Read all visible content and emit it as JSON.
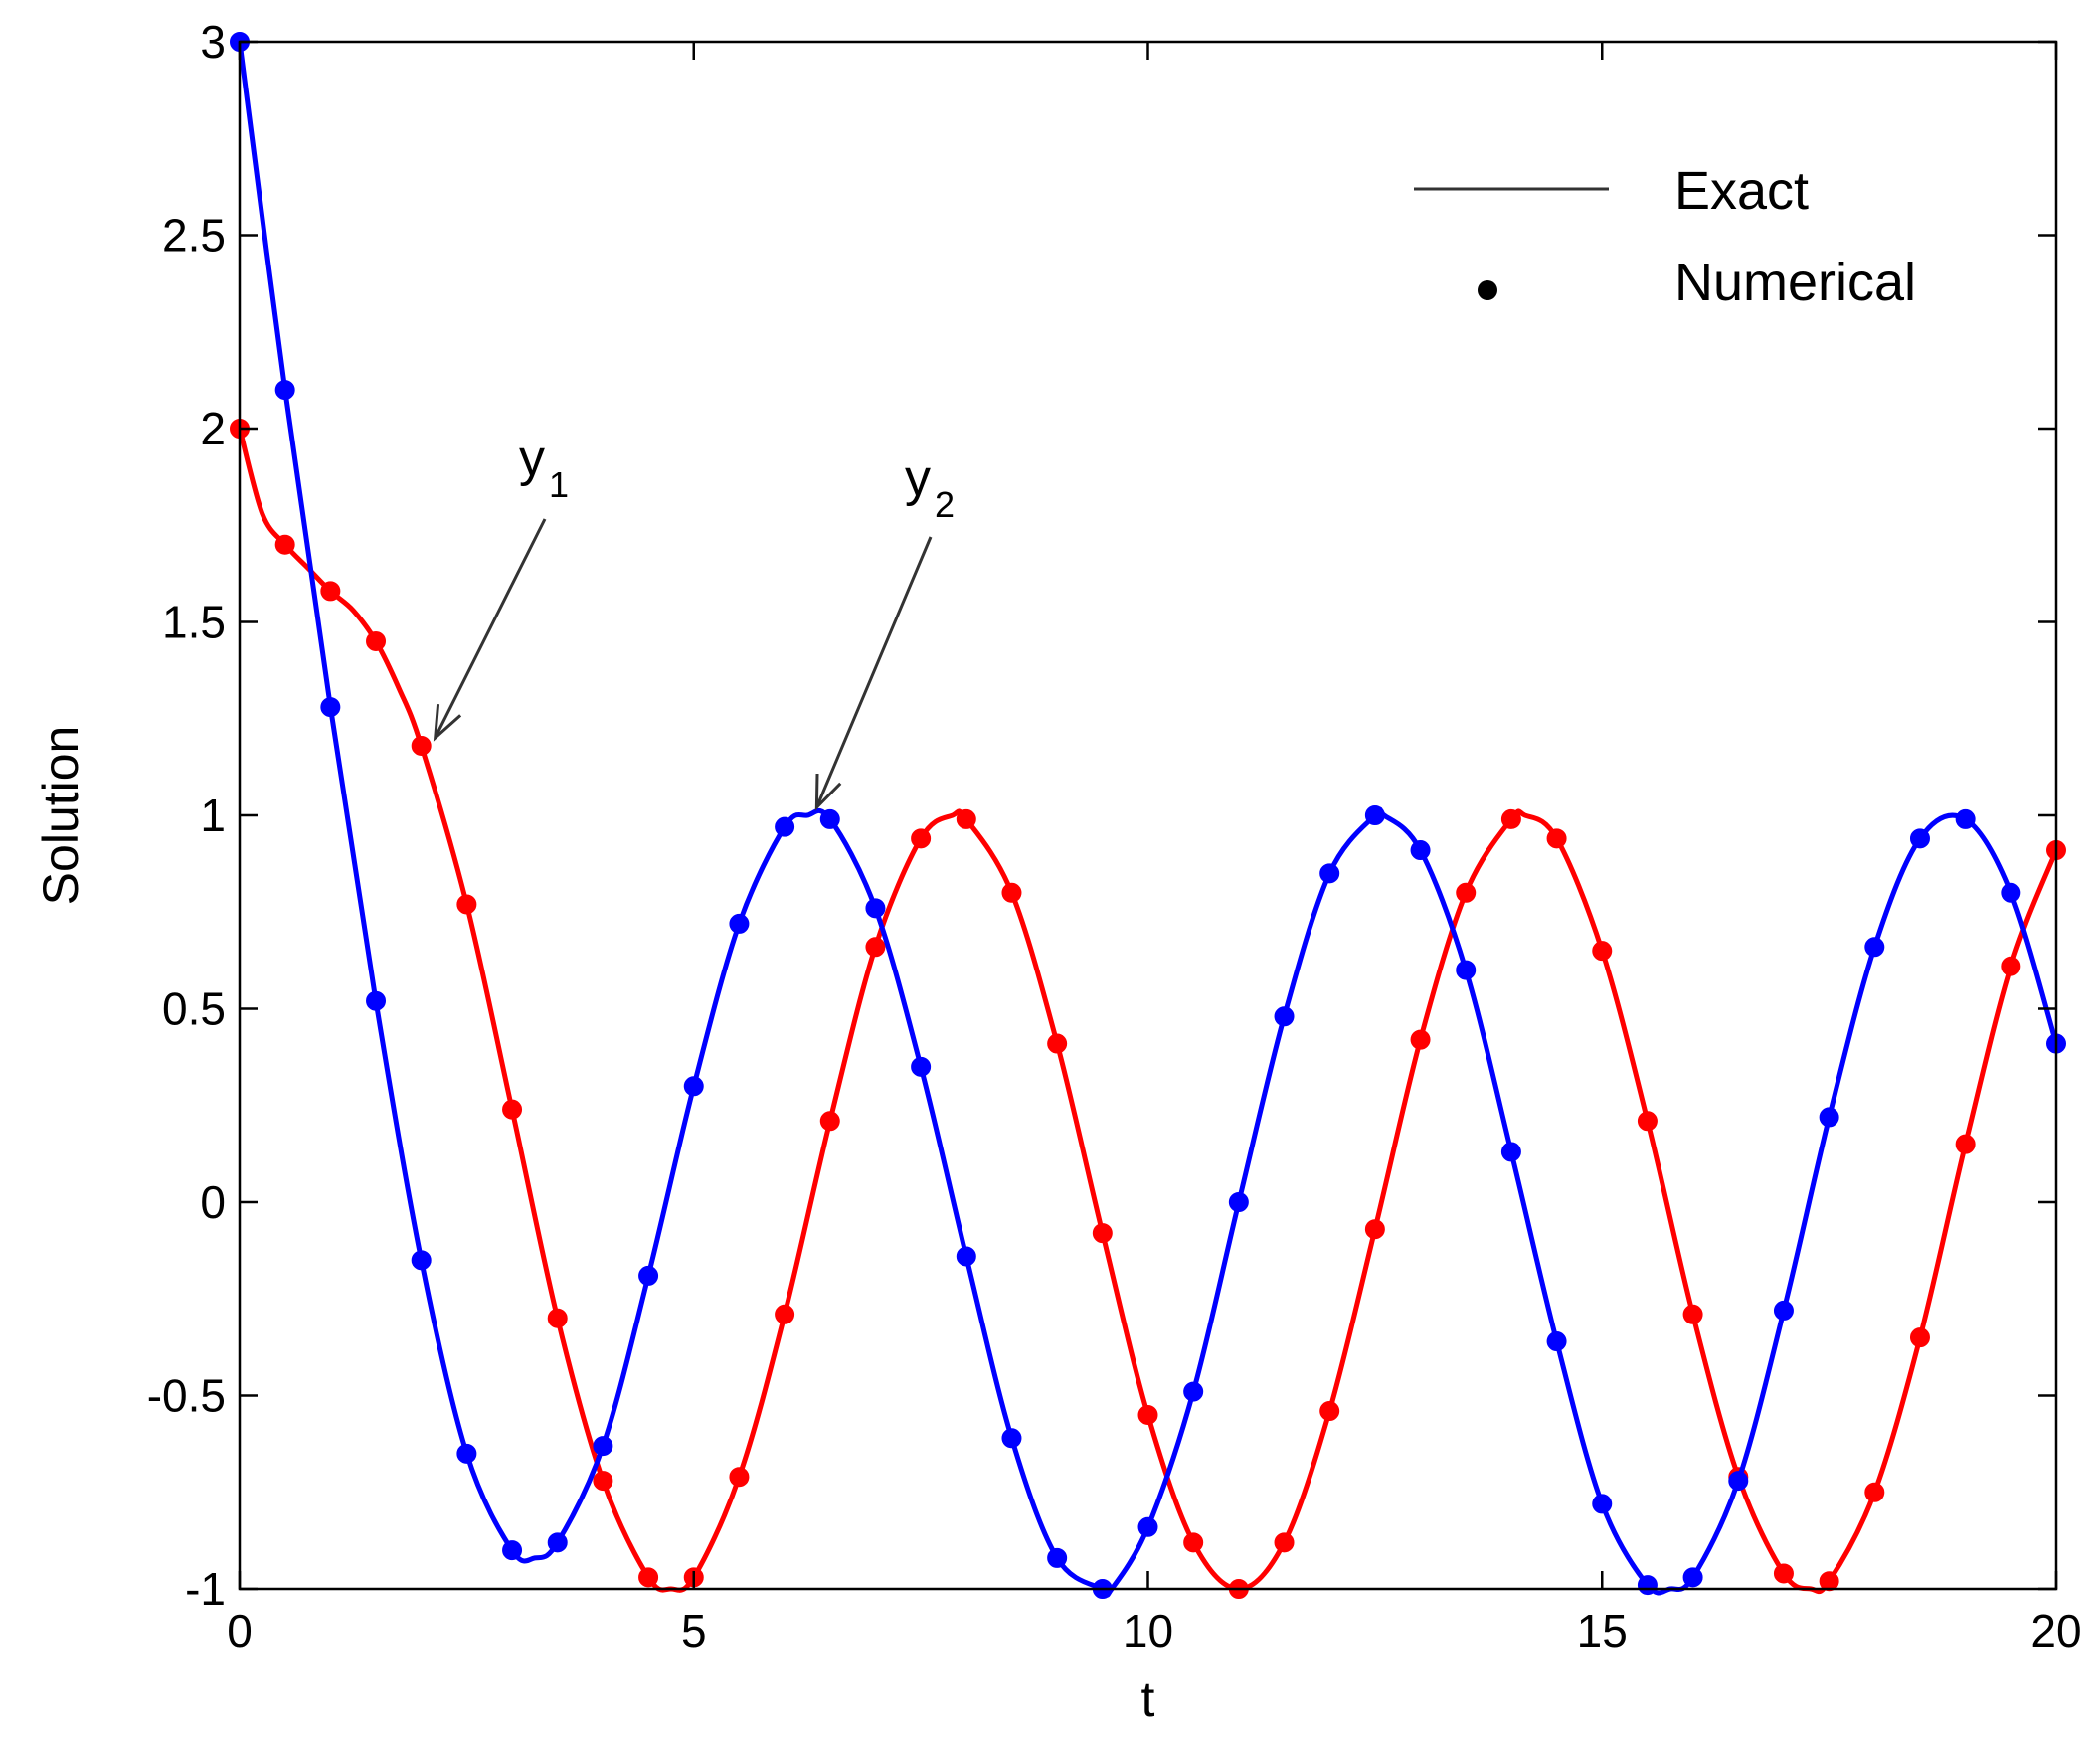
{
  "chart_data": {
    "type": "line",
    "title": "",
    "xlabel": "t",
    "ylabel": "Solution",
    "xlim": [
      0,
      20
    ],
    "ylim": [
      -1,
      3
    ],
    "xticks": [
      0,
      5,
      10,
      15,
      20
    ],
    "yticks": [
      -1,
      -0.5,
      0,
      0.5,
      1,
      1.5,
      2,
      2.5,
      3
    ],
    "xtick_labels": [
      "0",
      "5",
      "10",
      "15",
      "20"
    ],
    "ytick_labels": [
      "-1",
      "-0.5",
      "0",
      "0.5",
      "1",
      "1.5",
      "2",
      "2.5",
      "3"
    ],
    "grid": false,
    "legend": {
      "placement": "top-right",
      "entries": [
        {
          "label": "Exact",
          "marker": "line"
        },
        {
          "label": "Numerical",
          "marker": "dot"
        }
      ]
    },
    "annotations": [
      {
        "base": "y",
        "subscript": "1",
        "points_to": {
          "x": 2.0,
          "y": 1.18
        }
      },
      {
        "base": "y",
        "subscript": "2",
        "points_to": {
          "x": 6.2,
          "y": 1.0
        }
      }
    ],
    "series": [
      {
        "color": "#ff0000",
        "exact": {
          "x": [
            0,
            0.25,
            0.5,
            0.75,
            1,
            1.25,
            1.5,
            1.75,
            2,
            2.5,
            3,
            3.5,
            4,
            4.5,
            4.75,
            5,
            5.5,
            6,
            6.5,
            7,
            7.5,
            7.85,
            8,
            8.5,
            9,
            9.5,
            10,
            10.5,
            11,
            11.5,
            12,
            12.5,
            13,
            13.5,
            14,
            14.15,
            14.5,
            15,
            15.5,
            16,
            16.5,
            17,
            17.3,
            17.5,
            18,
            18.5,
            19,
            19.5,
            20
          ],
          "y": [
            2.0,
            1.78,
            1.7,
            1.64,
            1.58,
            1.53,
            1.45,
            1.33,
            1.18,
            0.77,
            0.24,
            -0.3,
            -0.72,
            -0.97,
            -1.0,
            -0.97,
            -0.71,
            -0.29,
            0.21,
            0.66,
            0.94,
            1.0,
            0.99,
            0.8,
            0.41,
            -0.08,
            -0.55,
            -0.88,
            -1.0,
            -0.88,
            -0.54,
            -0.07,
            0.42,
            0.8,
            0.99,
            1.0,
            0.94,
            0.65,
            0.21,
            -0.29,
            -0.71,
            -0.96,
            -1.0,
            -0.98,
            -0.75,
            -0.35,
            0.15,
            0.61,
            0.91
          ]
        },
        "numerical": {
          "x": [
            0,
            0.5,
            1,
            1.5,
            2,
            2.5,
            3,
            3.5,
            4,
            4.5,
            5,
            5.5,
            6,
            6.5,
            7,
            7.5,
            8,
            8.5,
            9,
            9.5,
            10,
            10.5,
            11,
            11.5,
            12,
            12.5,
            13,
            13.5,
            14,
            14.5,
            15,
            15.5,
            16,
            16.5,
            17,
            17.5,
            18,
            18.5,
            19,
            19.5,
            20
          ],
          "y": [
            2.0,
            1.7,
            1.58,
            1.45,
            1.18,
            0.77,
            0.24,
            -0.3,
            -0.72,
            -0.97,
            -0.97,
            -0.71,
            -0.29,
            0.21,
            0.66,
            0.94,
            0.99,
            0.8,
            0.41,
            -0.08,
            -0.55,
            -0.88,
            -1.0,
            -0.88,
            -0.54,
            -0.07,
            0.42,
            0.8,
            0.99,
            0.94,
            0.65,
            0.21,
            -0.29,
            -0.71,
            -0.96,
            -0.98,
            -0.75,
            -0.35,
            0.15,
            0.61,
            0.91
          ]
        }
      },
      {
        "color": "#0000ff",
        "exact": {
          "x": [
            0,
            0.5,
            1,
            1.5,
            2,
            2.5,
            3,
            3.25,
            3.5,
            4,
            4.5,
            5,
            5.5,
            6,
            6.25,
            6.5,
            7,
            7.5,
            8,
            8.5,
            9,
            9.5,
            9.6,
            10,
            10.5,
            11,
            11.5,
            12,
            12.5,
            12.6,
            13,
            13.5,
            14,
            14.5,
            15,
            15.5,
            15.75,
            16,
            16.5,
            17,
            17.5,
            18,
            18.5,
            19,
            19.5,
            20
          ],
          "y": [
            3.0,
            2.1,
            1.28,
            0.52,
            -0.15,
            -0.65,
            -0.9,
            -0.92,
            -0.88,
            -0.63,
            -0.19,
            0.3,
            0.72,
            0.97,
            1.0,
            0.99,
            0.76,
            0.35,
            -0.14,
            -0.61,
            -0.92,
            -1.0,
            -1.0,
            -0.84,
            -0.49,
            0.0,
            0.48,
            0.85,
            1.0,
            1.0,
            0.91,
            0.6,
            0.13,
            -0.36,
            -0.78,
            -0.99,
            -1.0,
            -0.97,
            -0.72,
            -0.28,
            0.22,
            0.66,
            0.94,
            0.99,
            0.8,
            0.41
          ]
        },
        "numerical": {
          "x": [
            0,
            0.5,
            1,
            1.5,
            2,
            2.5,
            3,
            3.5,
            4,
            4.5,
            5,
            5.5,
            6,
            6.5,
            7,
            7.5,
            8,
            8.5,
            9,
            9.5,
            10,
            10.5,
            11,
            11.5,
            12,
            12.5,
            13,
            13.5,
            14,
            14.5,
            15,
            15.5,
            16,
            16.5,
            17,
            17.5,
            18,
            18.5,
            19,
            19.5,
            20
          ],
          "y": [
            3.0,
            2.1,
            1.28,
            0.52,
            -0.15,
            -0.65,
            -0.9,
            -0.88,
            -0.63,
            -0.19,
            0.3,
            0.72,
            0.97,
            0.99,
            0.76,
            0.35,
            -0.14,
            -0.61,
            -0.92,
            -1.0,
            -0.84,
            -0.49,
            0.0,
            0.48,
            0.85,
            1.0,
            0.91,
            0.6,
            0.13,
            -0.36,
            -0.78,
            -0.99,
            -0.97,
            -0.72,
            -0.28,
            0.22,
            0.66,
            0.94,
            0.99,
            0.8,
            0.41
          ]
        }
      }
    ]
  }
}
